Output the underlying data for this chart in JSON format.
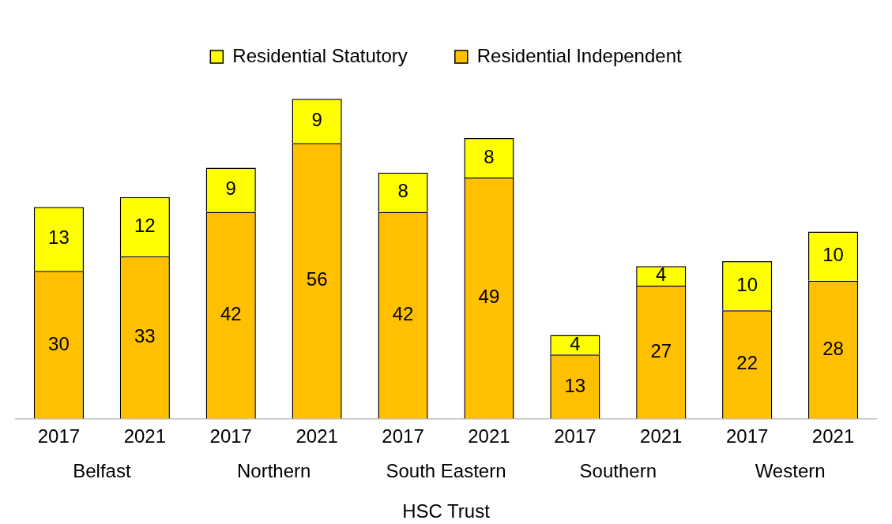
{
  "chart_data": {
    "type": "bar",
    "stacked": true,
    "xlabel": "HSC Trust",
    "categories": [
      "2017",
      "2021",
      "2017",
      "2021",
      "2017",
      "2021",
      "2017",
      "2021",
      "2017",
      "2021"
    ],
    "annotations": [
      "Belfast",
      "Northern",
      "South Eastern",
      "Southern",
      "Western"
    ],
    "series": [
      {
        "name": "Residential Independent",
        "color": "#ffc000",
        "values": [
          30,
          33,
          42,
          56,
          42,
          49,
          13,
          27,
          22,
          28
        ]
      },
      {
        "name": "Residential Statutory",
        "color": "#ffff00",
        "values": [
          13,
          12,
          9,
          9,
          8,
          8,
          4,
          4,
          10,
          10
        ]
      }
    ],
    "data_labels": true,
    "legend": "top",
    "grid": false
  }
}
